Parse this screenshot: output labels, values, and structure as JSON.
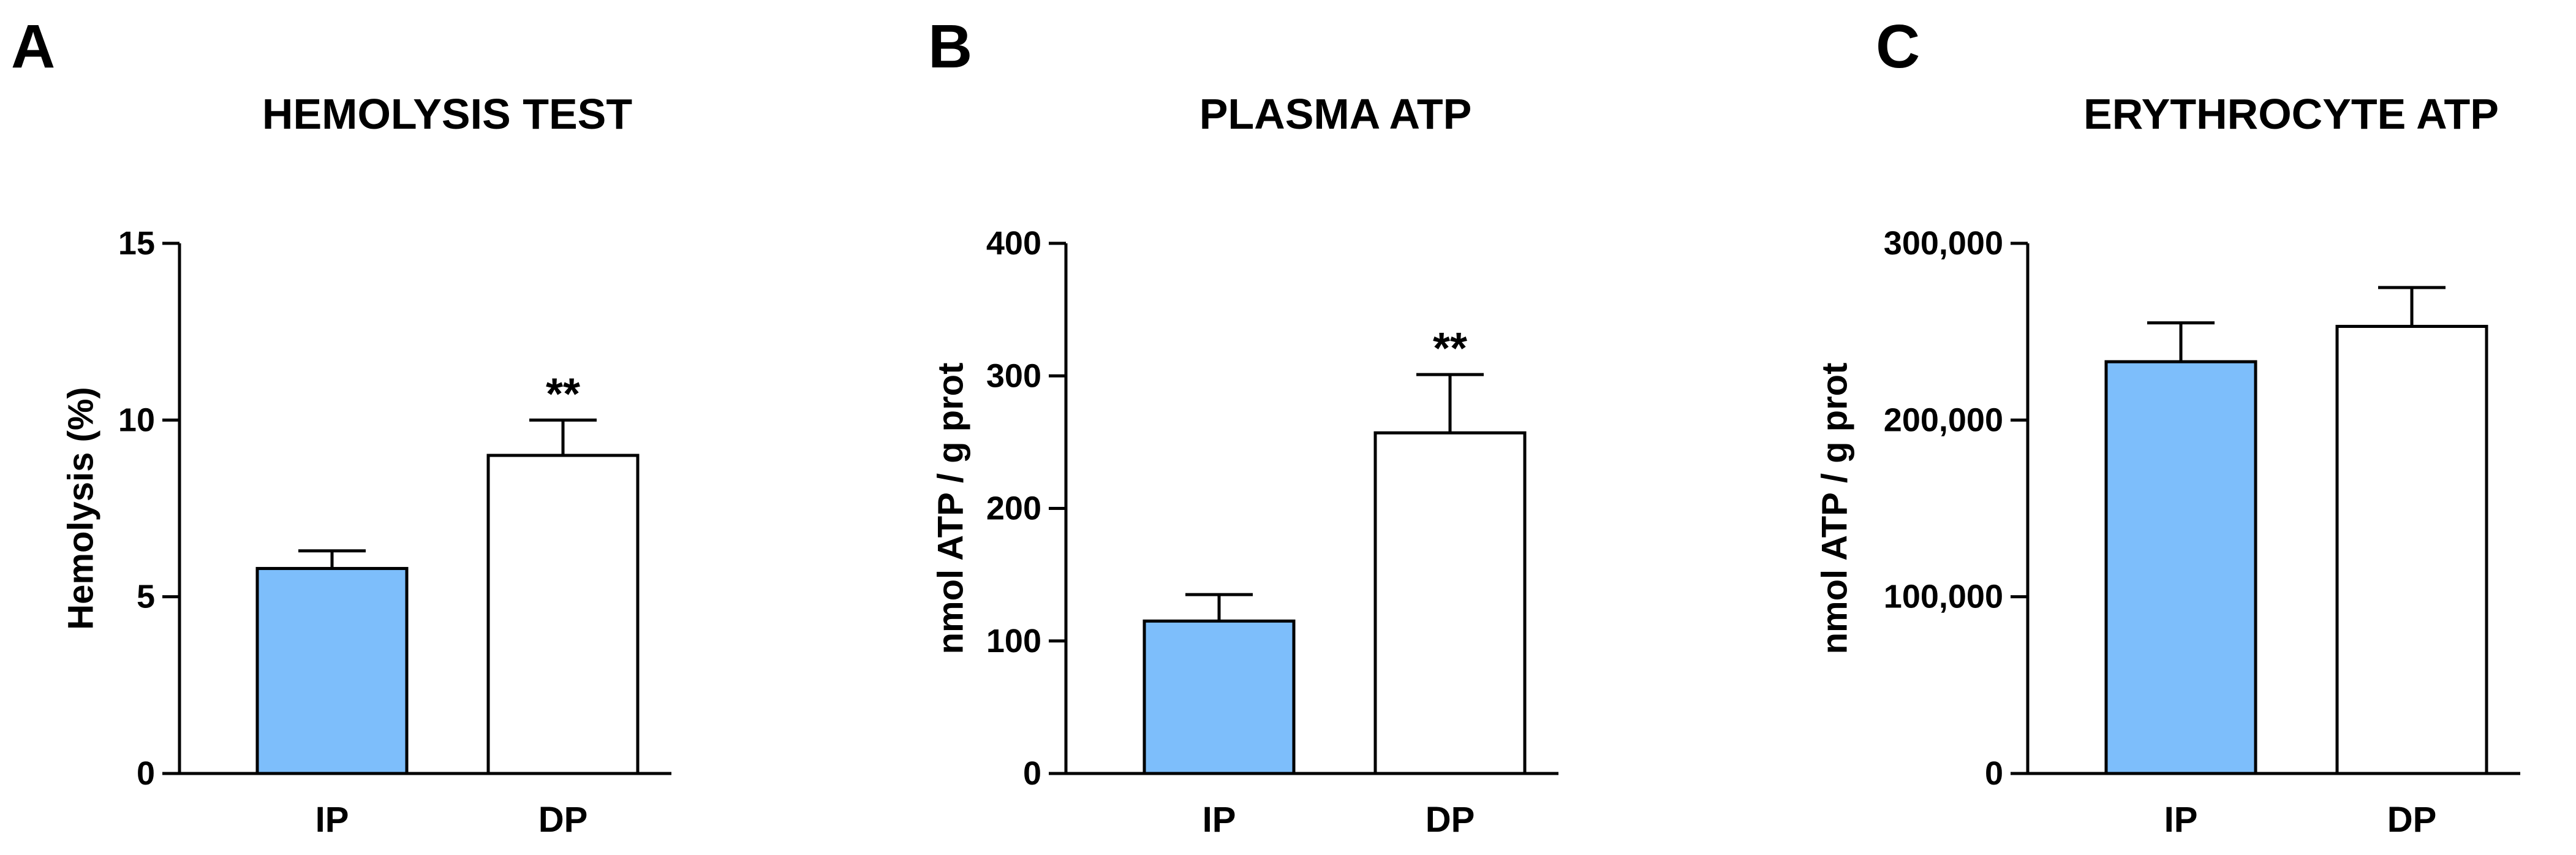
{
  "chart_data": [
    {
      "type": "bar",
      "panel": "A",
      "title": "HEMOLYSIS TEST",
      "ylabel": "Hemolysis (%)",
      "categories": [
        "IP",
        "DP"
      ],
      "values": [
        5.8,
        9.0
      ],
      "errors": [
        0.5,
        1.0
      ],
      "significance": [
        "",
        "**"
      ],
      "colors": [
        "#7dbefb",
        "#ffffff"
      ],
      "ylim": [
        0,
        15
      ],
      "yticks": [
        0,
        5,
        10,
        15
      ],
      "ytick_labels": [
        "0",
        "5",
        "10",
        "15"
      ],
      "grid": false
    },
    {
      "type": "bar",
      "panel": "B",
      "title": "PLASMA ATP",
      "ylabel": "nmol ATP / g prot",
      "categories": [
        "IP",
        "DP"
      ],
      "values": [
        115,
        257
      ],
      "errors": [
        20,
        44
      ],
      "significance": [
        "",
        "**"
      ],
      "colors": [
        "#7dbefb",
        "#ffffff"
      ],
      "ylim": [
        0,
        400
      ],
      "yticks": [
        0,
        100,
        200,
        300,
        400
      ],
      "ytick_labels": [
        "0",
        "100",
        "200",
        "300",
        "400"
      ],
      "grid": false
    },
    {
      "type": "bar",
      "panel": "C",
      "title": "ERYTHROCYTE ATP",
      "ylabel": "nmol ATP / g prot",
      "categories": [
        "IP",
        "DP"
      ],
      "values": [
        233000,
        253000
      ],
      "errors": [
        22000,
        22000
      ],
      "significance": [
        "",
        ""
      ],
      "colors": [
        "#7dbefb",
        "#ffffff"
      ],
      "ylim": [
        0,
        300000
      ],
      "yticks": [
        0,
        100000,
        200000,
        300000
      ],
      "ytick_labels": [
        "0",
        "100,000",
        "200,000",
        "300,000"
      ],
      "grid": false
    }
  ]
}
